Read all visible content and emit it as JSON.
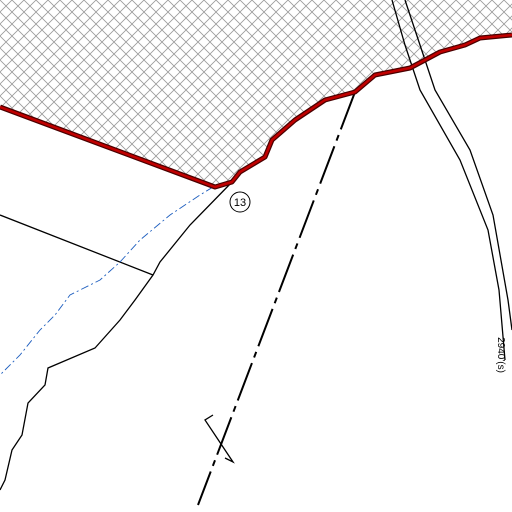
{
  "labels": {
    "parcel_number": "13",
    "road_label": "2940'(s)"
  }
}
